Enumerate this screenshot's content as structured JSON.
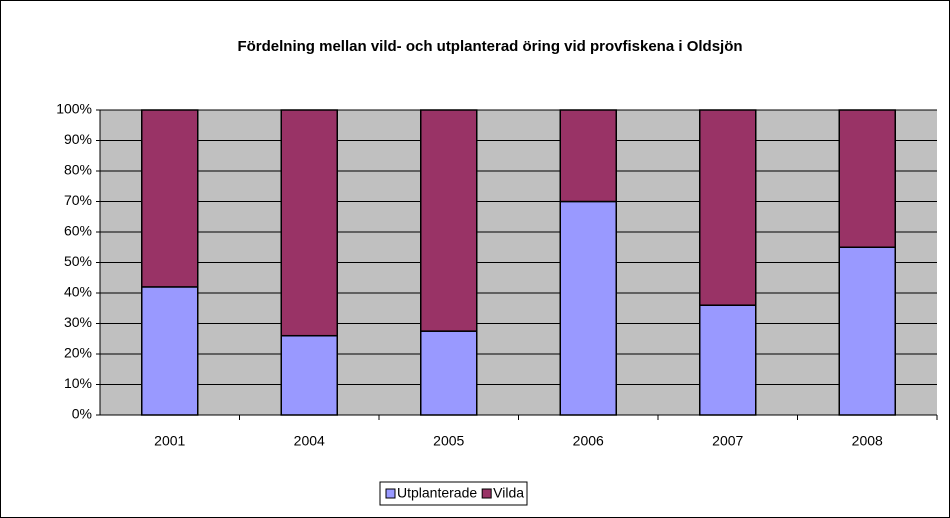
{
  "chart_data": {
    "type": "stacked_bar",
    "title": "Fördelning mellan vild- och utplanterad öring vid provfiskena i Oldsjön",
    "categories": [
      "2001",
      "2004",
      "2005",
      "2006",
      "2007",
      "2008"
    ],
    "series": [
      {
        "name": "Utplanterade",
        "color": "#9999ff",
        "values": [
          42,
          26,
          27.5,
          70,
          36,
          55
        ]
      },
      {
        "name": "Vilda",
        "color": "#993366",
        "values": [
          58,
          74,
          72.5,
          30,
          64,
          45
        ]
      }
    ],
    "ylim": [
      0,
      100
    ],
    "yticks": [
      {
        "value": 0,
        "label": "0%"
      },
      {
        "value": 10,
        "label": "10%"
      },
      {
        "value": 20,
        "label": "20%"
      },
      {
        "value": 30,
        "label": "30%"
      },
      {
        "value": 40,
        "label": "40%"
      },
      {
        "value": 50,
        "label": "50%"
      },
      {
        "value": 60,
        "label": "60%"
      },
      {
        "value": 70,
        "label": "70%"
      },
      {
        "value": 80,
        "label": "80%"
      },
      {
        "value": 90,
        "label": "90%"
      },
      {
        "value": 100,
        "label": "100%"
      }
    ],
    "grid": true,
    "legend": "bottom"
  }
}
